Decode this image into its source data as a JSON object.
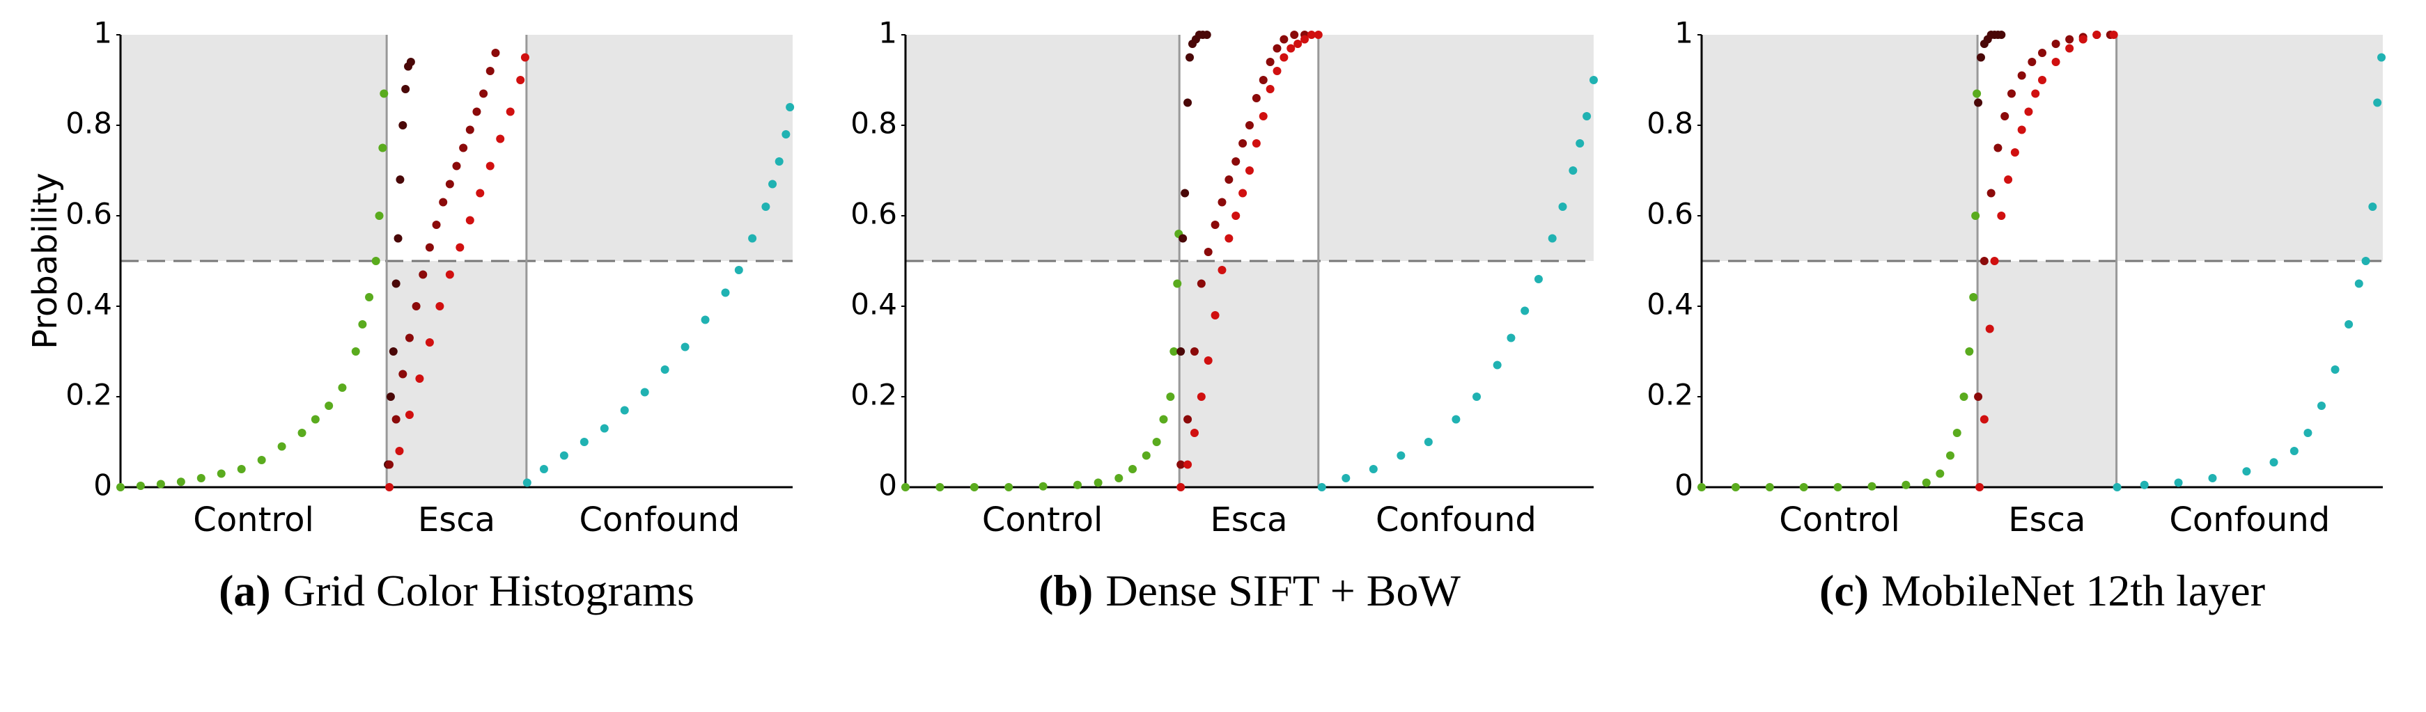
{
  "chart_data": [
    {
      "type": "scatter",
      "caption_label": "(a)",
      "caption": "Grid Color Histograms",
      "ylabel": "Probability",
      "categories": [
        "Control",
        "Esca",
        "Confound"
      ],
      "xdividers": [
        39.6,
        60.4
      ],
      "threshold": 0.5,
      "xlim": [
        0,
        100
      ],
      "ylim": [
        0,
        1
      ],
      "yticks": [
        0,
        0.2,
        0.4,
        0.6,
        0.8,
        1
      ],
      "series": [
        {
          "color": "#5aab1e",
          "x": [
            0,
            3,
            6,
            9,
            12,
            15,
            18,
            21,
            24,
            27,
            29,
            31,
            33,
            35,
            36,
            37,
            38,
            38.5,
            39,
            39.2
          ],
          "values": [
            0,
            0.003,
            0.007,
            0.012,
            0.02,
            0.03,
            0.04,
            0.06,
            0.09,
            0.12,
            0.15,
            0.18,
            0.22,
            0.3,
            0.36,
            0.42,
            0.5,
            0.6,
            0.75,
            0.87
          ]
        },
        {
          "color": "#4a0808",
          "x": [
            39.8,
            40.2,
            40.6,
            41,
            41.3,
            41.6,
            42,
            42.4,
            42.8,
            43.2
          ],
          "values": [
            0.05,
            0.2,
            0.3,
            0.45,
            0.55,
            0.68,
            0.8,
            0.88,
            0.93,
            0.94
          ]
        },
        {
          "color": "#8b0a0a",
          "x": [
            40,
            41,
            42,
            43,
            44,
            45,
            46,
            47,
            48,
            49,
            50,
            51,
            52,
            53,
            54,
            55,
            55.8
          ],
          "values": [
            0.05,
            0.15,
            0.25,
            0.33,
            0.4,
            0.47,
            0.53,
            0.58,
            0.63,
            0.67,
            0.71,
            0.75,
            0.79,
            0.83,
            0.87,
            0.92,
            0.96
          ]
        },
        {
          "color": "#d01010",
          "x": [
            40,
            41.5,
            43,
            44.5,
            46,
            47.5,
            49,
            50.5,
            52,
            53.5,
            55,
            56.5,
            58,
            59.5,
            60.2
          ],
          "values": [
            0,
            0.08,
            0.16,
            0.24,
            0.32,
            0.4,
            0.47,
            0.53,
            0.59,
            0.65,
            0.71,
            0.77,
            0.83,
            0.9,
            0.95
          ]
        },
        {
          "color": "#20b2b2",
          "x": [
            60.5,
            63,
            66,
            69,
            72,
            75,
            78,
            81,
            84,
            87,
            90,
            92,
            94,
            96,
            97,
            98,
            99,
            99.6
          ],
          "values": [
            0.01,
            0.04,
            0.07,
            0.1,
            0.13,
            0.17,
            0.21,
            0.26,
            0.31,
            0.37,
            0.43,
            0.48,
            0.55,
            0.62,
            0.67,
            0.72,
            0.78,
            0.84
          ]
        }
      ]
    },
    {
      "type": "scatter",
      "caption_label": "(b)",
      "caption": "Dense SIFT + BoW",
      "categories": [
        "Control",
        "Esca",
        "Confound"
      ],
      "xdividers": [
        39.8,
        60
      ],
      "threshold": 0.5,
      "xlim": [
        0,
        100
      ],
      "ylim": [
        0,
        1
      ],
      "yticks": [
        0,
        0.2,
        0.4,
        0.6,
        0.8,
        1
      ],
      "series": [
        {
          "color": "#5aab1e",
          "x": [
            0,
            5,
            10,
            15,
            20,
            25,
            28,
            31,
            33,
            35,
            36.5,
            37.5,
            38.5,
            39,
            39.5,
            39.7
          ],
          "values": [
            0,
            0,
            0,
            0,
            0.002,
            0.005,
            0.01,
            0.02,
            0.04,
            0.07,
            0.1,
            0.15,
            0.2,
            0.3,
            0.45,
            0.56
          ]
        },
        {
          "color": "#4a0808",
          "x": [
            40,
            40.3,
            40.6,
            41,
            41.3,
            41.7,
            42.2,
            42.7,
            43.2,
            43.8
          ],
          "values": [
            0.3,
            0.55,
            0.65,
            0.85,
            0.95,
            0.98,
            0.99,
            1,
            1,
            1
          ]
        },
        {
          "color": "#8b0a0a",
          "x": [
            40,
            41,
            42,
            43,
            44,
            45,
            46,
            47,
            48,
            49,
            50,
            51,
            52,
            53,
            54,
            55,
            56.5,
            58
          ],
          "values": [
            0.05,
            0.15,
            0.3,
            0.45,
            0.52,
            0.58,
            0.63,
            0.68,
            0.72,
            0.76,
            0.8,
            0.86,
            0.9,
            0.94,
            0.97,
            0.99,
            1,
            1
          ]
        },
        {
          "color": "#d01010",
          "x": [
            40,
            41,
            42,
            43,
            44,
            45,
            46,
            47,
            48,
            49,
            50,
            51,
            52,
            53,
            54,
            55,
            56,
            57,
            58,
            59,
            60
          ],
          "values": [
            0,
            0.05,
            0.12,
            0.2,
            0.28,
            0.38,
            0.48,
            0.55,
            0.6,
            0.65,
            0.7,
            0.76,
            0.82,
            0.88,
            0.92,
            0.95,
            0.97,
            0.98,
            0.99,
            1,
            1
          ]
        },
        {
          "color": "#20b2b2",
          "x": [
            60.5,
            64,
            68,
            72,
            76,
            80,
            83,
            86,
            88,
            90,
            92,
            94,
            95.5,
            97,
            98,
            99,
            100
          ],
          "values": [
            0,
            0.02,
            0.04,
            0.07,
            0.1,
            0.15,
            0.2,
            0.27,
            0.33,
            0.39,
            0.46,
            0.55,
            0.62,
            0.7,
            0.76,
            0.82,
            0.9
          ]
        }
      ]
    },
    {
      "type": "scatter",
      "caption_label": "(c)",
      "caption": "MobileNet 12th layer",
      "categories": [
        "Control",
        "Esca",
        "Confound"
      ],
      "xdividers": [
        40.5,
        60.9
      ],
      "threshold": 0.5,
      "xlim": [
        0,
        100
      ],
      "ylim": [
        0,
        1
      ],
      "yticks": [
        0,
        0.2,
        0.4,
        0.6,
        0.8,
        1
      ],
      "series": [
        {
          "color": "#5aab1e",
          "x": [
            0,
            5,
            10,
            15,
            20,
            25,
            30,
            33,
            35,
            36.5,
            37.5,
            38.5,
            39.3,
            39.9,
            40.2,
            40.4
          ],
          "values": [
            0,
            0,
            0,
            0,
            0,
            0.002,
            0.005,
            0.01,
            0.03,
            0.07,
            0.12,
            0.2,
            0.3,
            0.42,
            0.6,
            0.87
          ]
        },
        {
          "color": "#4a0808",
          "x": [
            40.6,
            41,
            41.5,
            42,
            42.5,
            43,
            43.5,
            44
          ],
          "values": [
            0.85,
            0.95,
            0.98,
            0.99,
            1,
            1,
            1,
            1
          ]
        },
        {
          "color": "#8b0a0a",
          "x": [
            40.6,
            41.5,
            42.5,
            43.5,
            44.5,
            45.5,
            47,
            48.5,
            50,
            52,
            54,
            56,
            58,
            60
          ],
          "values": [
            0.2,
            0.5,
            0.65,
            0.75,
            0.82,
            0.87,
            0.91,
            0.94,
            0.96,
            0.98,
            0.99,
            0.995,
            1,
            1
          ]
        },
        {
          "color": "#d01010",
          "x": [
            40.8,
            41.5,
            42.3,
            43,
            44,
            45,
            46,
            47,
            48,
            49,
            50,
            52,
            54,
            56,
            58,
            60.5
          ],
          "values": [
            0,
            0.15,
            0.35,
            0.5,
            0.6,
            0.68,
            0.74,
            0.79,
            0.83,
            0.87,
            0.9,
            0.94,
            0.97,
            0.99,
            1,
            1
          ]
        },
        {
          "color": "#20b2b2",
          "x": [
            61,
            65,
            70,
            75,
            80,
            84,
            87,
            89,
            91,
            93,
            95,
            96.5,
            97.5,
            98.5,
            99.2,
            99.8
          ],
          "values": [
            0,
            0.005,
            0.01,
            0.02,
            0.035,
            0.055,
            0.08,
            0.12,
            0.18,
            0.26,
            0.36,
            0.45,
            0.5,
            0.62,
            0.85,
            0.95
          ]
        }
      ]
    }
  ]
}
